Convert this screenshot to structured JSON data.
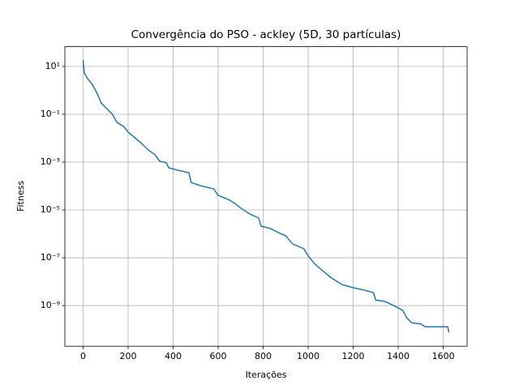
{
  "chart_data": {
    "type": "line",
    "title": "Convergência do PSO - ackley (5D, 30 partículas)",
    "xlabel": "Iterações",
    "ylabel": "Fitness",
    "yscale": "log",
    "grid": true,
    "x": [
      0,
      5,
      20,
      40,
      60,
      80,
      100,
      130,
      150,
      180,
      200,
      230,
      260,
      290,
      320,
      340,
      370,
      380,
      420,
      470,
      480,
      520,
      580,
      600,
      650,
      680,
      700,
      740,
      780,
      790,
      830,
      870,
      900,
      930,
      980,
      1000,
      1030,
      1060,
      1100,
      1150,
      1200,
      1250,
      1290,
      1300,
      1340,
      1380,
      1420,
      1440,
      1460,
      1500,
      1520,
      1620,
      1625
    ],
    "series": [
      {
        "name": "fitness",
        "color": "#1f77b4",
        "values": [
          18.6,
          5.4,
          3.1,
          1.8,
          0.83,
          0.3,
          0.19,
          0.1,
          0.046,
          0.031,
          0.018,
          0.0104,
          0.006,
          0.0032,
          0.002,
          0.0011,
          0.00093,
          0.00058,
          0.00046,
          0.00036,
          0.00014,
          0.000104,
          7.6e-05,
          4.1e-05,
          2.6e-05,
          1.7e-05,
          1.2e-05,
          6.8e-06,
          4.6e-06,
          2.1e-06,
          1.7e-06,
          1.1e-06,
          8.3e-07,
          3.8e-07,
          2.4e-07,
          1.2e-07,
          5.4e-08,
          3.1e-08,
          1.5e-08,
          7.6e-09,
          5.6e-09,
          4.4e-09,
          3.5e-09,
          1.7e-09,
          1.5e-09,
          1e-09,
          6.3e-10,
          2.9e-10,
          1.9e-10,
          1.7e-10,
          1.3e-10,
          1.3e-10,
          7.6e-11
        ]
      }
    ],
    "xlim": [
      -81,
      1706
    ],
    "xticks": [
      0,
      200,
      400,
      600,
      800,
      1000,
      1200,
      1400,
      1600
    ],
    "ylim": [
      2e-11,
      67
    ],
    "yticks": [
      {
        "value": 10,
        "label": "10¹"
      },
      {
        "value": 0.1,
        "label": "10⁻¹"
      },
      {
        "value": 0.001,
        "label": "10⁻³"
      },
      {
        "value": 1e-05,
        "label": "10⁻⁵"
      },
      {
        "value": 1e-07,
        "label": "10⁻⁷"
      },
      {
        "value": 1e-09,
        "label": "10⁻⁹"
      }
    ]
  }
}
